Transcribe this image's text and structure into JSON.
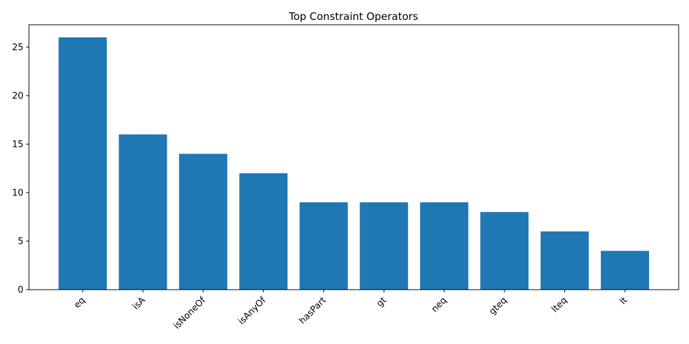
{
  "chart_data": {
    "type": "bar",
    "title": "Top Constraint Operators",
    "xlabel": "",
    "ylabel": "",
    "categories": [
      "eq",
      "isA",
      "isNoneOf",
      "isAnyOf",
      "hasPart",
      "gt",
      "neq",
      "gteq",
      "lteq",
      "lt"
    ],
    "values": [
      26,
      16,
      14,
      12,
      9,
      9,
      9,
      8,
      6,
      4
    ],
    "ylim": [
      0,
      27.3
    ],
    "yticks": [
      0,
      5,
      10,
      15,
      20,
      25
    ],
    "grid": false,
    "bar_color": "#1f77b4",
    "xtick_rotation": "45 degrees, right-aligned"
  }
}
